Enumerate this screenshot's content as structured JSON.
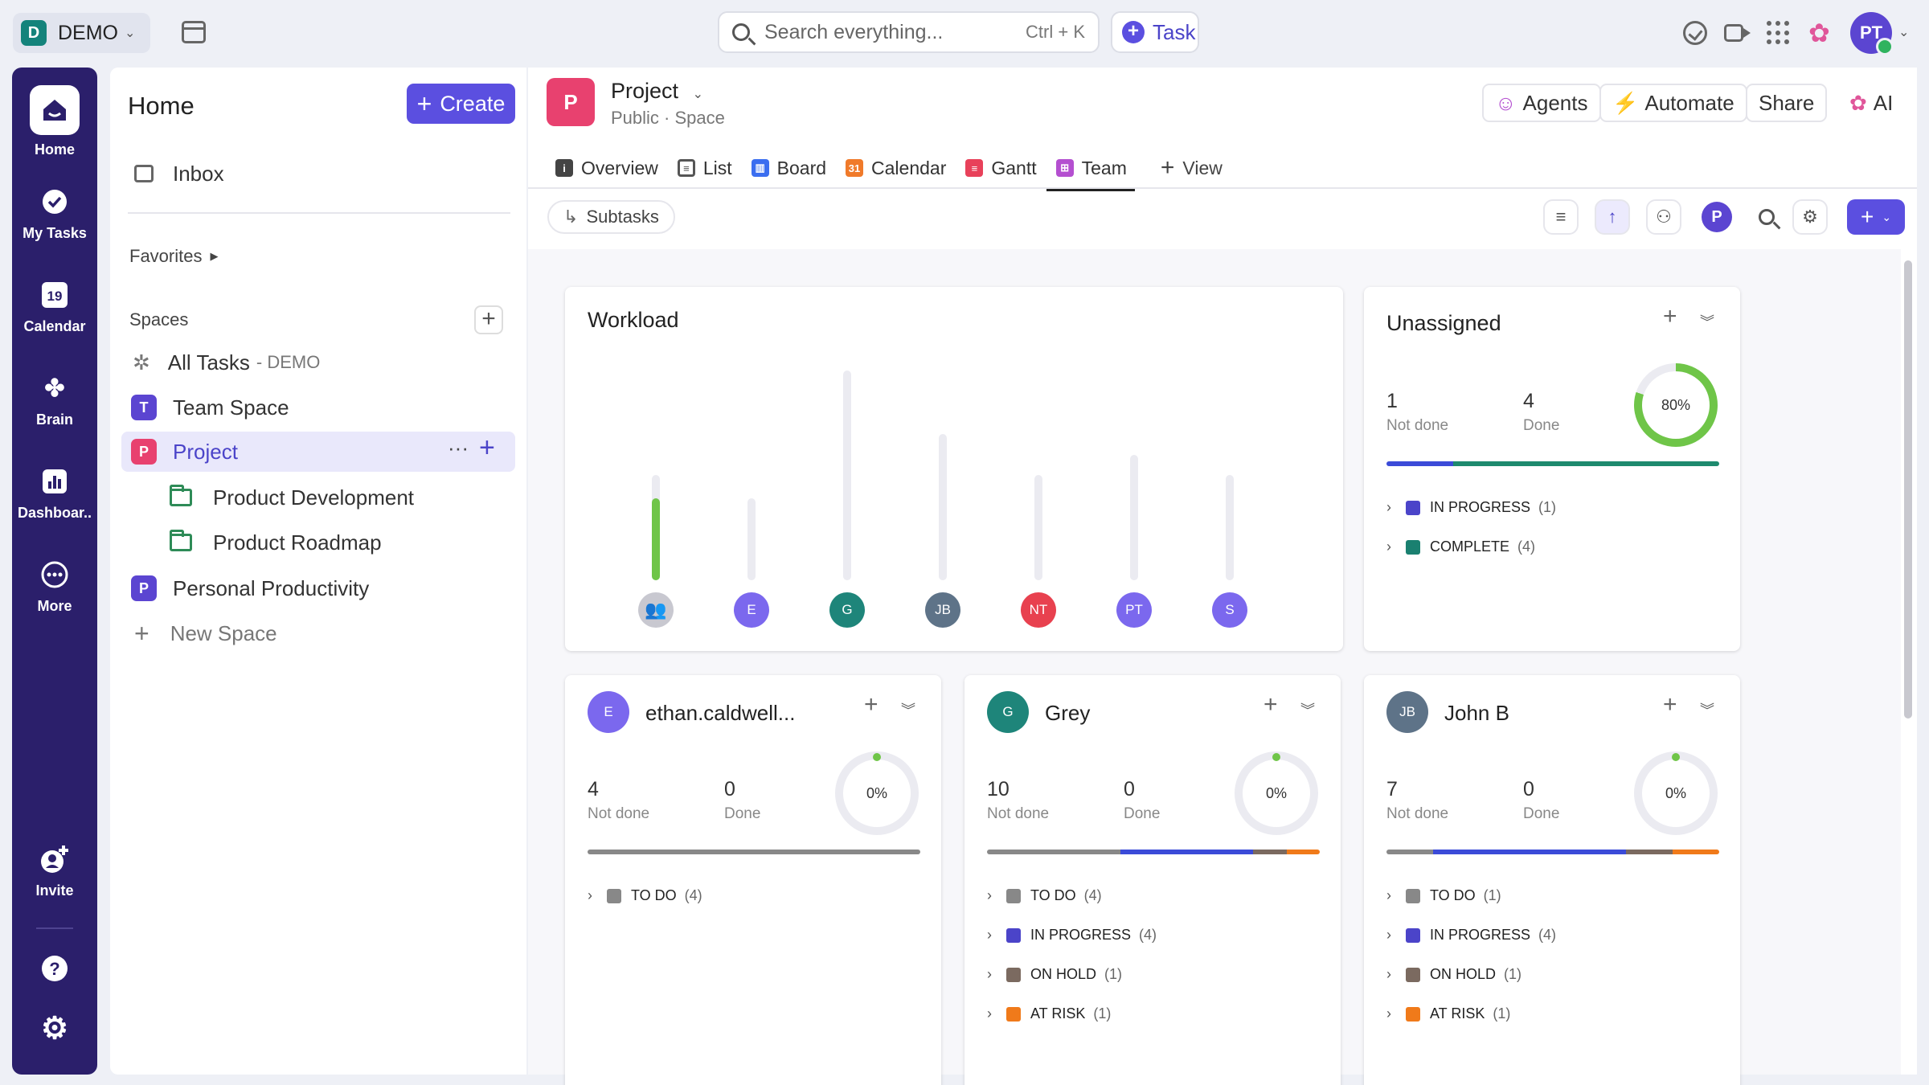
{
  "workspace": {
    "badge": "D",
    "name": "DEMO"
  },
  "search": {
    "placeholder": "Search everything...",
    "shortcut": "Ctrl + K"
  },
  "task_button": {
    "label": "Task"
  },
  "user": {
    "initials": "PT"
  },
  "rail": [
    {
      "label": "Home",
      "icon": "home-icon"
    },
    {
      "label": "My Tasks",
      "icon": "check-circle-icon"
    },
    {
      "label": "Calendar",
      "icon": "calendar-icon",
      "day": "19"
    },
    {
      "label": "Brain",
      "icon": "brain-icon"
    },
    {
      "label": "Dashboar..",
      "icon": "dashboard-icon"
    },
    {
      "label": "More",
      "icon": "more-icon"
    },
    {
      "label": "Invite",
      "icon": "invite-icon"
    }
  ],
  "sidebar": {
    "title": "Home",
    "create_label": "Create",
    "inbox": "Inbox",
    "favorites": "Favorites",
    "spaces": "Spaces",
    "all_tasks": "All Tasks",
    "all_tasks_suffix": "- DEMO",
    "items": [
      {
        "badge": "T",
        "label": "Team Space",
        "color": "#5b45d1"
      },
      {
        "badge": "P",
        "label": "Project",
        "color": "#e8416f"
      },
      {
        "label": "Product Development"
      },
      {
        "label": "Product Roadmap"
      },
      {
        "badge": "P",
        "label": "Personal Productivity",
        "color": "#5b45d1"
      }
    ],
    "new_space": "New Space"
  },
  "project": {
    "badge": "P",
    "title": "Project",
    "subtitle": "Public · Space"
  },
  "header_buttons": {
    "agents": "Agents",
    "automate": "Automate",
    "share": "Share",
    "ai": "AI"
  },
  "tabs": [
    {
      "label": "Overview",
      "color": "#444"
    },
    {
      "label": "List",
      "color": "#444"
    },
    {
      "label": "Board",
      "color": "#3b6ef0"
    },
    {
      "label": "Calendar",
      "color": "#f07a2a",
      "glyph": "31"
    },
    {
      "label": "Gantt",
      "color": "#e8415a"
    },
    {
      "label": "Team",
      "color": "#b44fd0"
    }
  ],
  "add_view": "View",
  "toolbar": {
    "subtasks": "Subtasks",
    "avatar": "P"
  },
  "workload": {
    "title": "Workload",
    "people": [
      {
        "initials": "",
        "color": "#c8c8d0",
        "total": 0.46,
        "done": 0.36
      },
      {
        "initials": "E",
        "color": "#7b68ee",
        "total": 0.36,
        "done": 0
      },
      {
        "initials": "G",
        "color": "#1e857a",
        "total": 0.92,
        "done": 0
      },
      {
        "initials": "JB",
        "color": "#5e7388",
        "total": 0.64,
        "done": 0
      },
      {
        "initials": "NT",
        "color": "#e8414f",
        "total": 0.46,
        "done": 0
      },
      {
        "initials": "PT",
        "color": "#7b68ee",
        "total": 0.55,
        "done": 0
      },
      {
        "initials": "S",
        "color": "#7b68ee",
        "total": 0.46,
        "done": 0
      }
    ]
  },
  "unassigned": {
    "title": "Unassigned",
    "not_done": "1",
    "not_done_label": "Not done",
    "done": "4",
    "done_label": "Done",
    "percent": "80%",
    "ring_fraction": 0.8,
    "progress": [
      {
        "color": "#3b4bd8",
        "frac": 0.2
      },
      {
        "color": "#1e8a6e",
        "frac": 0.8
      }
    ],
    "statuses": [
      {
        "label": "IN PROGRESS",
        "count": "(1)",
        "color": "#4b44c9"
      },
      {
        "label": "COMPLETE",
        "count": "(4)",
        "color": "#1a8070"
      }
    ]
  },
  "members": [
    {
      "initials": "E",
      "name": "ethan.caldwell...",
      "color": "#7b68ee",
      "not_done": "4",
      "done": "0",
      "percent": "0%",
      "progress": [
        {
          "color": "#888",
          "frac": 1
        }
      ],
      "statuses": [
        {
          "label": "TO DO",
          "count": "(4)",
          "color": "#888"
        }
      ]
    },
    {
      "initials": "G",
      "name": "Grey",
      "color": "#1e857a",
      "not_done": "10",
      "done": "0",
      "percent": "0%",
      "progress": [
        {
          "color": "#888",
          "frac": 0.4
        },
        {
          "color": "#3b4bd8",
          "frac": 0.4
        },
        {
          "color": "#7b6a60",
          "frac": 0.1
        },
        {
          "color": "#f07a1a",
          "frac": 0.1
        }
      ],
      "statuses": [
        {
          "label": "TO DO",
          "count": "(4)",
          "color": "#888"
        },
        {
          "label": "IN PROGRESS",
          "count": "(4)",
          "color": "#4b44c9"
        },
        {
          "label": "ON HOLD",
          "count": "(1)",
          "color": "#7b6a60"
        },
        {
          "label": "AT RISK",
          "count": "(1)",
          "color": "#f07a1a"
        }
      ]
    },
    {
      "initials": "JB",
      "name": "John B",
      "color": "#5e7388",
      "not_done": "7",
      "done": "0",
      "percent": "0%",
      "progress": [
        {
          "color": "#888",
          "frac": 0.14
        },
        {
          "color": "#3b4bd8",
          "frac": 0.58
        },
        {
          "color": "#7b6a60",
          "frac": 0.14
        },
        {
          "color": "#f07a1a",
          "frac": 0.14
        }
      ],
      "statuses": [
        {
          "label": "TO DO",
          "count": "(1)",
          "color": "#888"
        },
        {
          "label": "IN PROGRESS",
          "count": "(4)",
          "color": "#4b44c9"
        },
        {
          "label": "ON HOLD",
          "count": "(1)",
          "color": "#7b6a60"
        },
        {
          "label": "AT RISK",
          "count": "(1)",
          "color": "#f07a1a"
        }
      ]
    }
  ],
  "labels": {
    "not_done": "Not done",
    "done": "Done"
  }
}
